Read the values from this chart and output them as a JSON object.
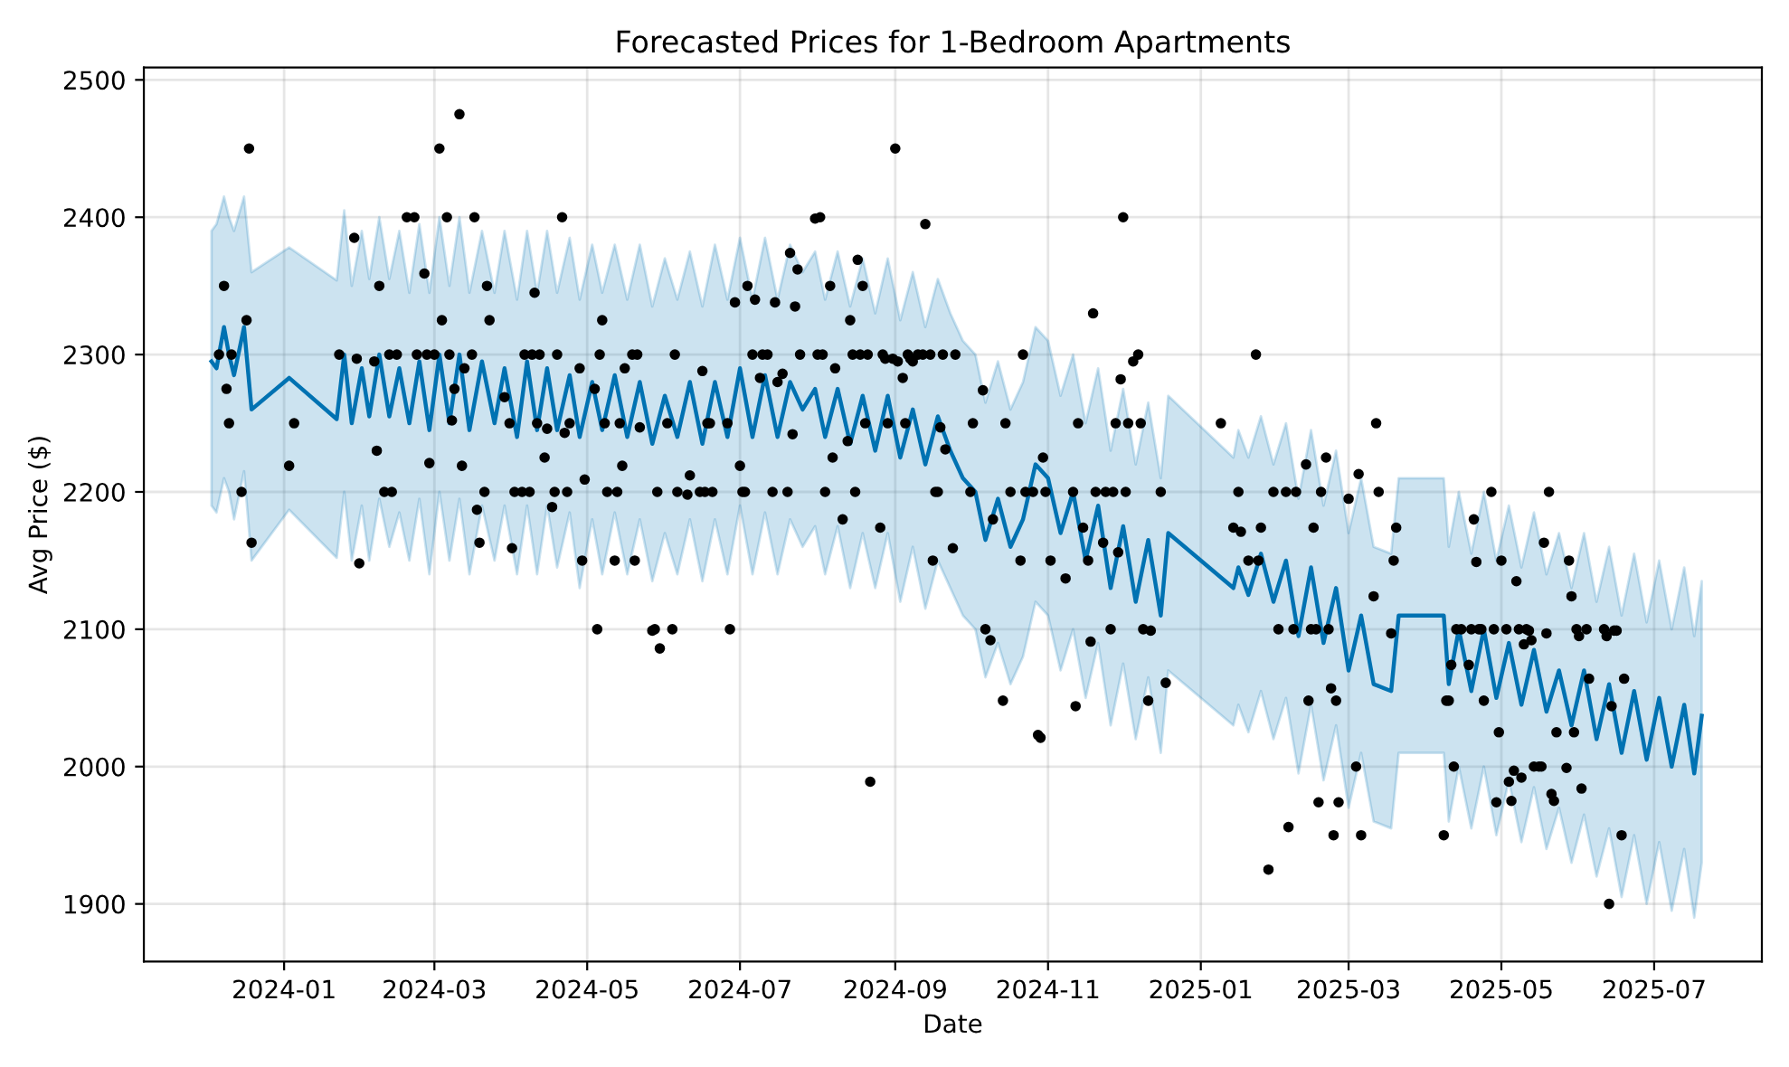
{
  "chart_data": {
    "type": "scatter",
    "title": "Forecasted Prices for 1-Bedroom Apartments",
    "xlabel": "Date",
    "ylabel": "Avg Price ($)",
    "xlim": [
      "2023-11-06",
      "2025-08-13"
    ],
    "xticks": [
      {
        "value": "2024-01-01",
        "label": "2024-01"
      },
      {
        "value": "2024-03-01",
        "label": "2024-03"
      },
      {
        "value": "2024-05-01",
        "label": "2024-05"
      },
      {
        "value": "2024-07-01",
        "label": "2024-07"
      },
      {
        "value": "2024-09-01",
        "label": "2024-09"
      },
      {
        "value": "2024-11-01",
        "label": "2024-11"
      },
      {
        "value": "2025-01-01",
        "label": "2025-01"
      },
      {
        "value": "2025-03-01",
        "label": "2025-03"
      },
      {
        "value": "2025-05-01",
        "label": "2025-05"
      },
      {
        "value": "2025-07-01",
        "label": "2025-07"
      }
    ],
    "ylim": [
      1858,
      2509
    ],
    "yticks": [
      1900,
      2000,
      2100,
      2200,
      2300,
      2400,
      2500
    ],
    "grid": true,
    "marker": "circle",
    "series": [
      {
        "type": "line",
        "color": "#0072b2",
        "line_style": "solid",
        "marker": "none",
        "x": [
          "2023-12-03",
          "2023-12-05",
          "2023-12-08",
          "2023-12-10",
          "2023-12-12",
          "2023-12-16",
          "2023-12-19",
          "2024-01-03",
          "2024-01-22",
          "2024-01-25",
          "2024-01-28",
          "2024-02-01",
          "2024-02-04",
          "2024-02-08",
          "2024-02-12",
          "2024-02-16",
          "2024-02-20",
          "2024-02-24",
          "2024-02-28",
          "2024-03-03",
          "2024-03-07",
          "2024-03-11",
          "2024-03-15",
          "2024-03-20",
          "2024-03-25",
          "2024-03-29",
          "2024-04-03",
          "2024-04-07",
          "2024-04-11",
          "2024-04-15",
          "2024-04-19",
          "2024-04-24",
          "2024-04-28",
          "2024-05-03",
          "2024-05-07",
          "2024-05-12",
          "2024-05-17",
          "2024-05-22",
          "2024-05-27",
          "2024-06-01",
          "2024-06-06",
          "2024-06-11",
          "2024-06-16",
          "2024-06-21",
          "2024-06-26",
          "2024-07-01",
          "2024-07-06",
          "2024-07-11",
          "2024-07-16",
          "2024-07-21",
          "2024-07-26",
          "2024-07-31",
          "2024-08-04",
          "2024-08-09",
          "2024-08-14",
          "2024-08-19",
          "2024-08-24",
          "2024-08-29",
          "2024-09-03",
          "2024-09-08",
          "2024-09-13",
          "2024-09-18",
          "2024-09-23",
          "2024-09-28",
          "2024-10-03",
          "2024-10-07",
          "2024-10-12",
          "2024-10-17",
          "2024-10-22",
          "2024-10-27",
          "2024-11-01",
          "2024-11-06",
          "2024-11-11",
          "2024-11-16",
          "2024-11-21",
          "2024-11-26",
          "2024-12-01",
          "2024-12-06",
          "2024-12-11",
          "2024-12-16",
          "2024-12-19",
          "2025-01-14",
          "2025-01-16",
          "2025-01-20",
          "2025-01-25",
          "2025-01-30",
          "2025-02-04",
          "2025-02-09",
          "2025-02-14",
          "2025-02-19",
          "2025-02-24",
          "2025-03-01",
          "2025-03-06",
          "2025-03-11",
          "2025-03-18",
          "2025-03-21",
          "2025-04-08",
          "2025-04-10",
          "2025-04-14",
          "2025-04-19",
          "2025-04-24",
          "2025-04-29",
          "2025-05-04",
          "2025-05-09",
          "2025-05-14",
          "2025-05-19",
          "2025-05-24",
          "2025-05-29",
          "2025-06-03",
          "2025-06-08",
          "2025-06-13",
          "2025-06-18",
          "2025-06-23",
          "2025-06-28",
          "2025-07-03",
          "2025-07-08",
          "2025-07-13",
          "2025-07-17",
          "2025-07-20"
        ],
        "values": [
          2295,
          2290,
          2320,
          2300,
          2285,
          2320,
          2260,
          2283,
          2253,
          2300,
          2250,
          2290,
          2255,
          2300,
          2255,
          2290,
          2250,
          2295,
          2245,
          2300,
          2250,
          2300,
          2245,
          2295,
          2250,
          2290,
          2240,
          2295,
          2245,
          2290,
          2245,
          2285,
          2240,
          2280,
          2245,
          2285,
          2240,
          2280,
          2235,
          2270,
          2240,
          2280,
          2235,
          2280,
          2240,
          2290,
          2240,
          2285,
          2240,
          2280,
          2260,
          2275,
          2240,
          2275,
          2235,
          2270,
          2230,
          2270,
          2225,
          2260,
          2220,
          2255,
          2230,
          2210,
          2200,
          2165,
          2195,
          2160,
          2180,
          2220,
          2210,
          2170,
          2200,
          2150,
          2190,
          2130,
          2175,
          2120,
          2165,
          2110,
          2170,
          2130,
          2145,
          2125,
          2155,
          2120,
          2150,
          2095,
          2145,
          2090,
          2130,
          2070,
          2110,
          2060,
          2055,
          2110,
          2110,
          2060,
          2100,
          2055,
          2100,
          2050,
          2090,
          2045,
          2085,
          2040,
          2070,
          2030,
          2070,
          2020,
          2060,
          2010,
          2055,
          2005,
          2050,
          2000,
          2045,
          1995,
          2037
        ],
        "lower": [
          2190,
          2185,
          2210,
          2200,
          2180,
          2215,
          2150,
          2187,
          2152,
          2200,
          2150,
          2190,
          2150,
          2195,
          2160,
          2185,
          2150,
          2195,
          2140,
          2200,
          2150,
          2195,
          2140,
          2190,
          2150,
          2190,
          2140,
          2190,
          2140,
          2190,
          2145,
          2185,
          2130,
          2180,
          2140,
          2185,
          2140,
          2180,
          2135,
          2170,
          2140,
          2180,
          2135,
          2180,
          2140,
          2190,
          2140,
          2185,
          2140,
          2180,
          2160,
          2175,
          2140,
          2175,
          2130,
          2170,
          2130,
          2170,
          2120,
          2160,
          2115,
          2150,
          2130,
          2110,
          2100,
          2065,
          2090,
          2060,
          2080,
          2120,
          2110,
          2070,
          2100,
          2050,
          2090,
          2030,
          2075,
          2020,
          2065,
          2010,
          2070,
          2030,
          2045,
          2025,
          2055,
          2020,
          2050,
          1995,
          2045,
          1990,
          2030,
          1970,
          2010,
          1960,
          1955,
          2010,
          2010,
          1960,
          2000,
          1955,
          2000,
          1950,
          1990,
          1945,
          1985,
          1940,
          1970,
          1930,
          1965,
          1920,
          1955,
          1905,
          1950,
          1900,
          1945,
          1895,
          1940,
          1890,
          1930
        ],
        "upper": [
          2390,
          2395,
          2415,
          2400,
          2390,
          2415,
          2360,
          2378,
          2354,
          2405,
          2350,
          2390,
          2355,
          2400,
          2355,
          2390,
          2345,
          2395,
          2345,
          2400,
          2350,
          2400,
          2345,
          2390,
          2345,
          2390,
          2340,
          2390,
          2345,
          2390,
          2345,
          2385,
          2340,
          2380,
          2345,
          2380,
          2340,
          2380,
          2335,
          2370,
          2340,
          2375,
          2335,
          2380,
          2340,
          2385,
          2340,
          2385,
          2340,
          2380,
          2360,
          2375,
          2340,
          2375,
          2335,
          2370,
          2330,
          2370,
          2325,
          2360,
          2320,
          2355,
          2330,
          2310,
          2300,
          2265,
          2295,
          2260,
          2280,
          2320,
          2310,
          2270,
          2300,
          2250,
          2290,
          2230,
          2275,
          2220,
          2265,
          2210,
          2270,
          2225,
          2245,
          2225,
          2255,
          2220,
          2250,
          2195,
          2245,
          2190,
          2230,
          2170,
          2210,
          2160,
          2155,
          2210,
          2210,
          2160,
          2200,
          2155,
          2200,
          2150,
          2190,
          2145,
          2185,
          2140,
          2170,
          2130,
          2170,
          2120,
          2160,
          2110,
          2155,
          2105,
          2150,
          2100,
          2145,
          2095,
          2135
        ]
      },
      {
        "color": "#000000",
        "x": [
          "2023-12-18",
          "2023-12-08",
          "2023-12-06",
          "2023-12-11",
          "2023-12-17",
          "2023-12-09",
          "2023-12-10",
          "2023-12-15",
          "2023-12-19",
          "2024-01-03",
          "2024-01-05",
          "2024-01-29",
          "2024-01-23",
          "2024-01-30",
          "2024-01-31",
          "2024-02-08",
          "2024-02-06",
          "2024-02-07",
          "2024-02-10",
          "2024-02-13",
          "2024-02-12",
          "2024-02-15",
          "2024-02-19",
          "2024-02-22",
          "2024-02-23",
          "2024-02-26",
          "2024-02-27",
          "2024-03-01",
          "2024-02-28",
          "2024-03-03",
          "2024-03-04",
          "2024-03-06",
          "2024-03-07",
          "2024-03-08",
          "2024-03-09",
          "2024-03-11",
          "2024-03-12",
          "2024-03-13",
          "2024-03-16",
          "2024-03-17",
          "2024-03-18",
          "2024-03-19",
          "2024-03-21",
          "2024-03-22",
          "2024-03-23",
          "2024-03-29",
          "2024-03-31",
          "2024-04-01",
          "2024-04-02",
          "2024-04-05",
          "2024-04-08",
          "2024-04-06",
          "2024-04-09",
          "2024-04-12",
          "2024-04-10",
          "2024-04-11",
          "2024-04-14",
          "2024-04-17",
          "2024-04-18",
          "2024-04-15",
          "2024-04-19",
          "2024-04-21",
          "2024-04-22",
          "2024-04-23",
          "2024-04-24",
          "2024-04-28",
          "2024-04-29",
          "2024-04-30",
          "2024-05-05",
          "2024-05-07",
          "2024-05-06",
          "2024-05-04",
          "2024-05-08",
          "2024-05-09",
          "2024-05-13",
          "2024-05-12",
          "2024-05-14",
          "2024-05-15",
          "2024-05-16",
          "2024-05-20",
          "2024-05-19",
          "2024-05-21",
          "2024-05-22",
          "2024-05-27",
          "2024-05-28",
          "2024-05-30",
          "2024-06-04",
          "2024-05-29",
          "2024-06-02",
          "2024-06-05",
          "2024-06-06",
          "2024-06-10",
          "2024-06-11",
          "2024-06-15",
          "2024-06-17",
          "2024-06-16",
          "2024-06-18",
          "2024-06-19",
          "2024-06-26",
          "2024-06-20",
          "2024-06-27",
          "2024-06-29",
          "2024-07-01",
          "2024-07-02",
          "2024-07-03",
          "2024-07-04",
          "2024-07-06",
          "2024-07-07",
          "2024-07-09",
          "2024-07-10",
          "2024-07-12",
          "2024-07-14",
          "2024-07-15",
          "2024-07-16",
          "2024-07-18",
          "2024-07-20",
          "2024-07-21",
          "2024-07-22",
          "2024-07-23",
          "2024-07-24",
          "2024-07-25",
          "2024-07-31",
          "2024-08-02",
          "2024-08-01",
          "2024-08-03",
          "2024-08-04",
          "2024-08-06",
          "2024-08-07",
          "2024-08-08",
          "2024-08-11",
          "2024-08-13",
          "2024-08-14",
          "2024-08-15",
          "2024-08-16",
          "2024-08-17",
          "2024-08-18",
          "2024-08-19",
          "2024-08-21",
          "2024-08-20",
          "2024-08-22",
          "2024-08-26",
          "2024-08-27",
          "2024-08-28",
          "2024-08-29",
          "2024-09-01",
          "2024-08-31",
          "2024-09-02",
          "2024-09-04",
          "2024-09-05",
          "2024-09-06",
          "2024-09-07",
          "2024-09-08",
          "2024-09-10",
          "2024-09-12",
          "2024-09-13",
          "2024-09-15",
          "2024-09-16",
          "2024-09-17",
          "2024-09-18",
          "2024-09-19",
          "2024-09-20",
          "2024-09-21",
          "2024-09-24",
          "2024-09-25",
          "2024-10-01",
          "2024-10-02",
          "2024-10-06",
          "2024-10-07",
          "2024-10-09",
          "2024-10-10",
          "2024-10-14",
          "2024-10-15",
          "2024-10-17",
          "2024-10-21",
          "2024-10-22",
          "2024-10-23",
          "2024-10-26",
          "2024-10-28",
          "2024-10-29",
          "2024-10-30",
          "2024-10-31",
          "2024-11-02",
          "2024-11-08",
          "2024-11-12",
          "2024-11-13",
          "2024-11-15",
          "2024-11-11",
          "2024-11-17",
          "2024-11-18",
          "2024-11-19",
          "2024-11-20",
          "2024-11-23",
          "2024-11-24",
          "2024-11-26",
          "2024-11-27",
          "2024-11-29",
          "2024-11-28",
          "2024-11-30",
          "2024-12-01",
          "2024-12-02",
          "2024-12-03",
          "2024-12-05",
          "2024-12-07",
          "2024-12-08",
          "2024-12-09",
          "2024-12-12",
          "2024-12-11",
          "2024-12-16",
          "2024-12-18",
          "2025-01-09",
          "2025-01-14",
          "2025-01-16",
          "2025-01-17",
          "2025-01-20",
          "2025-01-23",
          "2025-01-24",
          "2025-01-25",
          "2025-01-28",
          "2025-01-30",
          "2025-02-01",
          "2025-02-04",
          "2025-02-05",
          "2025-02-07",
          "2025-02-08",
          "2025-02-12",
          "2025-02-13",
          "2025-02-14",
          "2025-02-15",
          "2025-02-16",
          "2025-02-17",
          "2025-02-18",
          "2025-02-20",
          "2025-02-21",
          "2025-02-22",
          "2025-02-23",
          "2025-02-24",
          "2025-02-25",
          "2025-03-01",
          "2025-03-04",
          "2025-03-05",
          "2025-03-06",
          "2025-03-11",
          "2025-03-12",
          "2025-03-13",
          "2025-03-18",
          "2025-03-19",
          "2025-03-20",
          "2025-04-08",
          "2025-04-09",
          "2025-04-10",
          "2025-04-11",
          "2025-04-12",
          "2025-04-13",
          "2025-04-15",
          "2025-04-18",
          "2025-04-19",
          "2025-04-20",
          "2025-04-21",
          "2025-04-22",
          "2025-04-23",
          "2025-04-24",
          "2025-04-27",
          "2025-04-28",
          "2025-04-29",
          "2025-04-30",
          "2025-05-01",
          "2025-05-03",
          "2025-05-04",
          "2025-05-05",
          "2025-05-06",
          "2025-05-07",
          "2025-05-08",
          "2025-05-09",
          "2025-05-10",
          "2025-05-11",
          "2025-05-12",
          "2025-05-13",
          "2025-05-14",
          "2025-05-16",
          "2025-05-17",
          "2025-05-18",
          "2025-05-19",
          "2025-05-20",
          "2025-05-21",
          "2025-05-22",
          "2025-05-23",
          "2025-05-27",
          "2025-05-28",
          "2025-05-29",
          "2025-05-30",
          "2025-05-31",
          "2025-06-01",
          "2025-06-02",
          "2025-06-04",
          "2025-06-05",
          "2025-06-11",
          "2025-06-12",
          "2025-06-13",
          "2025-06-14",
          "2025-06-15",
          "2025-06-16",
          "2025-06-18",
          "2025-06-19"
        ],
        "values": [
          2450,
          2350,
          2300,
          2300,
          2325,
          2275,
          2250,
          2200,
          2163,
          2219,
          2250,
          2385,
          2300,
          2297,
          2148,
          2350,
          2295,
          2230,
          2200,
          2200,
          2300,
          2300,
          2400,
          2400,
          2300,
          2359,
          2300,
          2300,
          2221,
          2450,
          2325,
          2400,
          2300,
          2252,
          2275,
          2475,
          2219,
          2290,
          2300,
          2400,
          2187,
          2163,
          2200,
          2350,
          2325,
          2269,
          2250,
          2159,
          2200,
          2200,
          2200,
          2300,
          2300,
          2300,
          2345,
          2250,
          2225,
          2189,
          2200,
          2246,
          2300,
          2400,
          2243,
          2200,
          2250,
          2290,
          2150,
          2209,
          2100,
          2325,
          2300,
          2275,
          2250,
          2200,
          2200,
          2150,
          2250,
          2219,
          2290,
          2150,
          2300,
          2300,
          2247,
          2099,
          2100,
          2086,
          2100,
          2200,
          2250,
          2300,
          2200,
          2198,
          2212,
          2200,
          2200,
          2288,
          2250,
          2250,
          2250,
          2200,
          2100,
          2338,
          2219,
          2200,
          2200,
          2350,
          2300,
          2340,
          2283,
          2300,
          2300,
          2200,
          2338,
          2280,
          2286,
          2200,
          2374,
          2242,
          2335,
          2362,
          2300,
          2399,
          2400,
          2300,
          2300,
          2200,
          2350,
          2225,
          2290,
          2180,
          2237,
          2325,
          2300,
          2200,
          2369,
          2300,
          2350,
          2300,
          2250,
          1989,
          2174,
          2300,
          2297,
          2250,
          2450,
          2297,
          2295,
          2283,
          2250,
          2300,
          2297,
          2295,
          2300,
          2300,
          2395,
          2300,
          2150,
          2200,
          2200,
          2247,
          2300,
          2231,
          2159,
          2300,
          2200,
          2250,
          2274,
          2100,
          2092,
          2180,
          2048,
          2250,
          2200,
          2150,
          2300,
          2200,
          2200,
          2023,
          2021,
          2225,
          2200,
          2150,
          2137,
          2044,
          2250,
          2174,
          2200,
          2150,
          2091,
          2330,
          2200,
          2163,
          2200,
          2100,
          2200,
          2156,
          2250,
          2282,
          2400,
          2200,
          2250,
          2295,
          2300,
          2250,
          2100,
          2099,
          2048,
          2200,
          2061,
          2250,
          2174,
          2200,
          2171,
          2150,
          2300,
          2150,
          2174,
          1925,
          2200,
          2100,
          2200,
          1956,
          2100,
          2200,
          2220,
          2048,
          2100,
          2174,
          2100,
          1974,
          2200,
          2225,
          2100,
          2057,
          1950,
          2048,
          1974,
          2195,
          2000,
          2213,
          1950,
          2124,
          2250,
          2200,
          2097,
          2150,
          2174,
          1950,
          2048,
          2048,
          2074,
          2000,
          2100,
          2100,
          2074,
          2100,
          2180,
          2149,
          2100,
          2100,
          2048,
          2200,
          2100,
          1974,
          2025,
          2150,
          2100,
          1989,
          1975,
          1997,
          2135,
          2100,
          1992,
          2089,
          2100,
          2099,
          2092,
          2000,
          2000,
          2000,
          2163,
          2097,
          2200,
          1980,
          1975,
          2025,
          1999,
          2150,
          2124,
          2025,
          2100,
          2095,
          1984,
          2100,
          2064,
          2100,
          2095,
          1900,
          2044,
          2099,
          2099,
          1950,
          2064
        ]
      }
    ]
  }
}
